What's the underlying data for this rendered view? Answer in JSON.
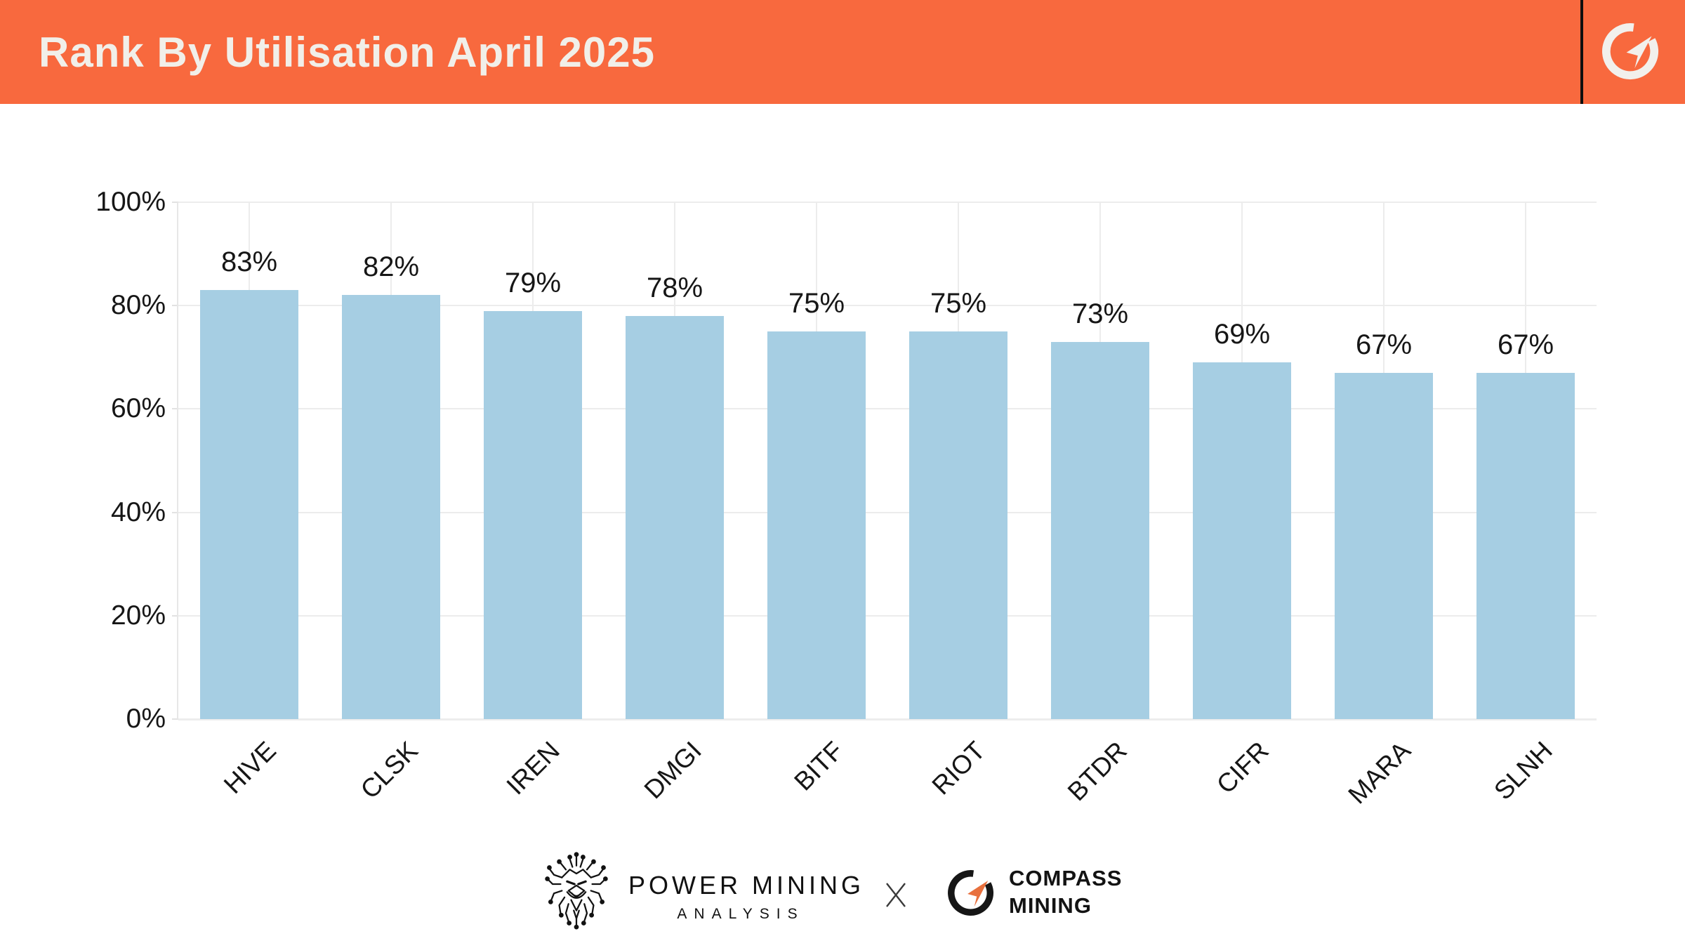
{
  "header": {
    "title": "Rank By Utilisation April 2025",
    "bg_color": "#F8693E",
    "text_color": "#F1EFE9",
    "divider_color": "#0E0E0E",
    "logo": "compass-c-icon"
  },
  "chart_data": {
    "type": "bar",
    "title": "Rank By Utilisation April 2025",
    "categories": [
      "HIVE",
      "CLSK",
      "IREN",
      "DMGI",
      "BITF",
      "RIOT",
      "BTDR",
      "CIFR",
      "MARA",
      "SLNH"
    ],
    "values": [
      83,
      82,
      79,
      78,
      75,
      75,
      73,
      69,
      67,
      67
    ],
    "value_labels": [
      "83%",
      "82%",
      "79%",
      "78%",
      "75%",
      "75%",
      "73%",
      "69%",
      "67%",
      "67%"
    ],
    "xlabel": "",
    "ylabel": "",
    "ylim": [
      0,
      100
    ],
    "yticks": [
      0,
      20,
      40,
      60,
      80,
      100
    ],
    "ytick_labels": [
      "0%",
      "20%",
      "40%",
      "60%",
      "80%",
      "100%"
    ],
    "grid": true,
    "legend": "none",
    "bar_color": "#A6CEE3",
    "grid_color": "#ECECEC",
    "axis_color": "#E7E7E7",
    "tick_color": "#E2E2E2",
    "label_color": "#161616"
  },
  "footer": {
    "power_mining": {
      "logo": "lion-circuit-icon",
      "line1": "POWER MINING",
      "line2": "ANALYSIS"
    },
    "separator": "X",
    "compass_mining": {
      "logo": "compass-c-icon",
      "line1": "COMPASS",
      "line2": "MINING",
      "ring_color": "#161616",
      "arrow_color": "#E8703D"
    }
  }
}
